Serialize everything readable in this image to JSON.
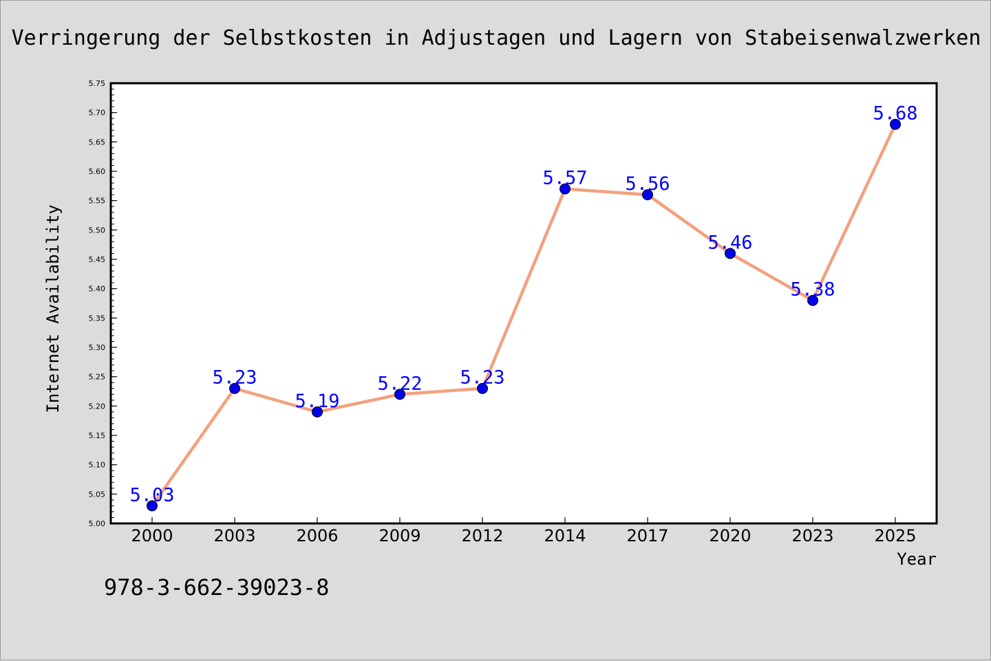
{
  "chart_data": {
    "type": "line",
    "title": "Verringerung der Selbstkosten in Adjustagen und Lagern von Stabeisenwalzwerken",
    "xlabel": "Year",
    "ylabel": "Internet Availability",
    "categories": [
      "2000",
      "2003",
      "2006",
      "2009",
      "2012",
      "2014",
      "2017",
      "2020",
      "2023",
      "2025"
    ],
    "series": [
      {
        "values": [
          5.03,
          5.23,
          5.19,
          5.22,
          5.23,
          5.57,
          5.56,
          5.46,
          5.38,
          5.68
        ],
        "data_labels": [
          "5.03",
          "5.23",
          "5.19",
          "5.22",
          "5.23",
          "5.57",
          "5.56",
          "5.46",
          "5.38",
          "5.68"
        ],
        "line_color": "#f4a07e",
        "marker_color": "#0000ee"
      }
    ],
    "ylim": [
      5.0,
      5.75
    ],
    "yticks": [
      "5.00",
      "5.05",
      "5.10",
      "5.15",
      "5.20",
      "5.25",
      "5.30",
      "5.35",
      "5.40",
      "5.45",
      "5.50",
      "5.55",
      "5.60",
      "5.65",
      "5.70",
      "5.75"
    ],
    "grid": false,
    "legend": "none",
    "annotation": "978-3-662-39023-8",
    "label_color": "#0000ff"
  }
}
